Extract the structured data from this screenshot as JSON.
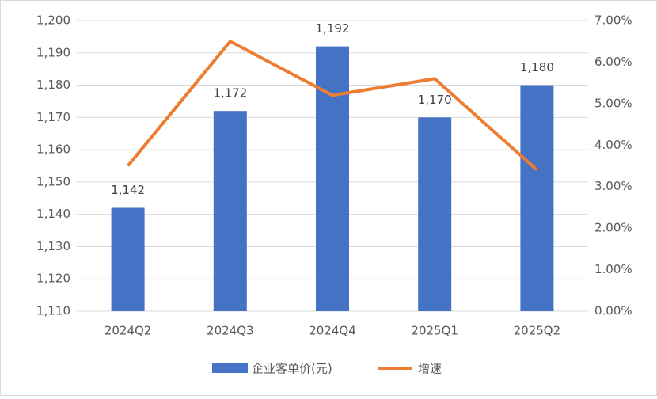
{
  "chart_data": {
    "type": "bar",
    "categories": [
      "2024Q2",
      "2024Q3",
      "2024Q4",
      "2025Q1",
      "2025Q2"
    ],
    "series": [
      {
        "name": "企业客单价(元)",
        "type": "bar",
        "color": "#4472c4",
        "values": [
          1142,
          1172,
          1192,
          1170,
          1180
        ],
        "value_labels": [
          "1,142",
          "1,172",
          "1,192",
          "1,170",
          "1,180"
        ]
      },
      {
        "name": "增速",
        "type": "line",
        "axis": "y2",
        "color": "#ed7d31",
        "values": [
          3.5,
          6.5,
          5.2,
          5.6,
          3.4
        ]
      }
    ],
    "ylim": [
      1110,
      1200
    ],
    "yticks": [
      {
        "value": 1110,
        "label": "1,110"
      },
      {
        "value": 1120,
        "label": "1,120"
      },
      {
        "value": 1130,
        "label": "1,130"
      },
      {
        "value": 1140,
        "label": "1,140"
      },
      {
        "value": 1150,
        "label": "1,150"
      },
      {
        "value": 1160,
        "label": "1,160"
      },
      {
        "value": 1170,
        "label": "1,170"
      },
      {
        "value": 1180,
        "label": "1,180"
      },
      {
        "value": 1190,
        "label": "1,190"
      },
      {
        "value": 1200,
        "label": "1,200"
      }
    ],
    "y2lim": [
      0,
      7
    ],
    "y2ticks": [
      {
        "value": 0,
        "label": "0.00%"
      },
      {
        "value": 1,
        "label": "1.00%"
      },
      {
        "value": 2,
        "label": "2.00%"
      },
      {
        "value": 3,
        "label": "3.00%"
      },
      {
        "value": 4,
        "label": "4.00%"
      },
      {
        "value": 5,
        "label": "5.00%"
      },
      {
        "value": 6,
        "label": "6.00%"
      },
      {
        "value": 7,
        "label": "7.00%"
      }
    ],
    "grid": true,
    "legend": "bottom"
  }
}
